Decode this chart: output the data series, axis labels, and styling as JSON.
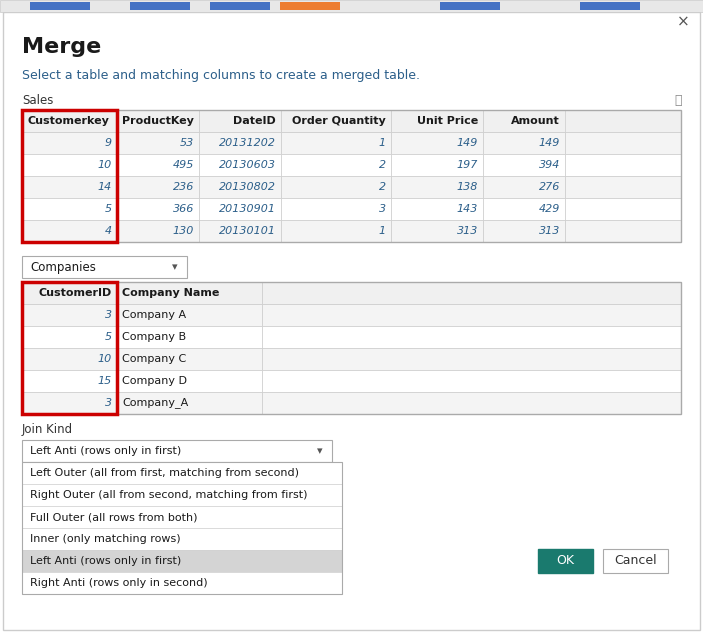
{
  "title": "Merge",
  "subtitle": "Select a table and matching columns to create a merged table.",
  "sales_label": "Sales",
  "sales_columns": [
    "Customerkey",
    "ProductKey",
    "DateID",
    "Order Quantity",
    "Unit Price",
    "Amount"
  ],
  "sales_data": [
    [
      9,
      53,
      20131202,
      1,
      149,
      149
    ],
    [
      10,
      495,
      20130603,
      2,
      197,
      394
    ],
    [
      14,
      236,
      20130802,
      2,
      138,
      276
    ],
    [
      5,
      366,
      20130901,
      3,
      143,
      429
    ],
    [
      4,
      130,
      20130101,
      1,
      313,
      313
    ]
  ],
  "companies_label": "Companies",
  "companies_columns": [
    "CustomerID",
    "Company Name"
  ],
  "companies_data": [
    [
      3,
      "Company A"
    ],
    [
      5,
      "Company B"
    ],
    [
      10,
      "Company C"
    ],
    [
      15,
      "Company D"
    ],
    [
      3,
      "Company_A"
    ]
  ],
  "join_kind_label": "Join Kind",
  "join_kind_selected": "Left Anti (rows only in first)",
  "join_kind_options": [
    "Left Outer (all from first, matching from second)",
    "Right Outer (all from second, matching from first)",
    "Full Outer (all rows from both)",
    "Inner (only matching rows)",
    "Left Anti (rows only in first)",
    "Right Anti (rows only in second)"
  ],
  "ok_button": "OK",
  "cancel_button": "Cancel",
  "bg_color": "#ffffff",
  "table_border": "#cccccc",
  "table_outer_border": "#aaaaaa",
  "red_border": "#cc0000",
  "selected_row_bg": "#d4d4d4",
  "ok_btn_bg": "#1a7a6e",
  "ok_btn_text": "#ffffff",
  "cancel_btn_bg": "#ffffff",
  "cancel_btn_text": "#333333",
  "cell_text_color": "#2c5f8a",
  "subtitle_color": "#2c5f8a",
  "header_bg": "#f0f0f0",
  "row_alt_bg": "#f4f4f4",
  "row_bg": "#ffffff",
  "nav_bg": "#e8e8e8",
  "nav_border": "#c8c8c8"
}
